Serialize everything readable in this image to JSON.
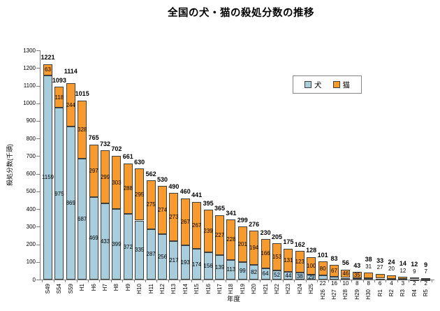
{
  "title": "全国の犬・猫の殺処分数の推移",
  "axes": {
    "y_title": "殺処分数(千頭)",
    "x_title": "年度"
  },
  "colors": {
    "dog": "#A8CDDD",
    "cat": "#F89B2E",
    "bar_border": "#3F3F3F",
    "axis": "#808080",
    "text": "#000000",
    "legend_border": "#848484"
  },
  "chart_data": {
    "type": "bar",
    "stacked": true,
    "title": "全国の犬・猫の殺処分数の推移",
    "xlabel": "年度",
    "ylabel": "殺処分数(千頭)",
    "ylim": [
      0,
      1300
    ],
    "y_ticks": [
      0,
      100,
      200,
      300,
      400,
      500,
      600,
      700,
      800,
      900,
      1000,
      1100,
      1200,
      1300
    ],
    "grid": false,
    "legend_position": "upper right inside",
    "categories": [
      "S49",
      "S54",
      "S59",
      "H1",
      "H6",
      "H7",
      "H8",
      "H9",
      "H10",
      "H11",
      "H12",
      "H13",
      "H14",
      "H15",
      "H16",
      "H17",
      "H18",
      "H19",
      "H20",
      "H21",
      "H22",
      "H23",
      "H24",
      "H25",
      "H26",
      "H27",
      "H28",
      "H29",
      "H30",
      "R1",
      "R2",
      "R3",
      "R4",
      "R5"
    ],
    "series": [
      {
        "name": "犬",
        "values": [
          1159,
          975,
          869,
          687,
          469,
          433,
          399,
          372,
          335,
          287,
          256,
          217,
          193,
          174,
          156,
          139,
          113,
          99,
          82,
          64,
          52,
          44,
          38,
          29,
          22,
          16,
          10,
          8,
          8,
          6,
          4,
          3,
          2,
          2
        ]
      },
      {
        "name": "猫",
        "values": [
          63,
          118,
          244,
          328,
          297,
          299,
          303,
          288,
          295,
          275,
          274,
          273,
          267,
          267,
          239,
          227,
          228,
          201,
          194,
          166,
          153,
          131,
          123,
          100,
          80,
          67,
          46,
          35,
          31,
          27,
          20,
          12,
          9,
          7
        ]
      }
    ],
    "totals": [
      1221,
      1093,
      1114,
      1015,
      765,
      732,
      702,
      661,
      630,
      562,
      530,
      490,
      460,
      441,
      395,
      365,
      341,
      299,
      276,
      230,
      205,
      175,
      162,
      128,
      101,
      83,
      56,
      43,
      38,
      33,
      24,
      14,
      12,
      9
    ]
  }
}
